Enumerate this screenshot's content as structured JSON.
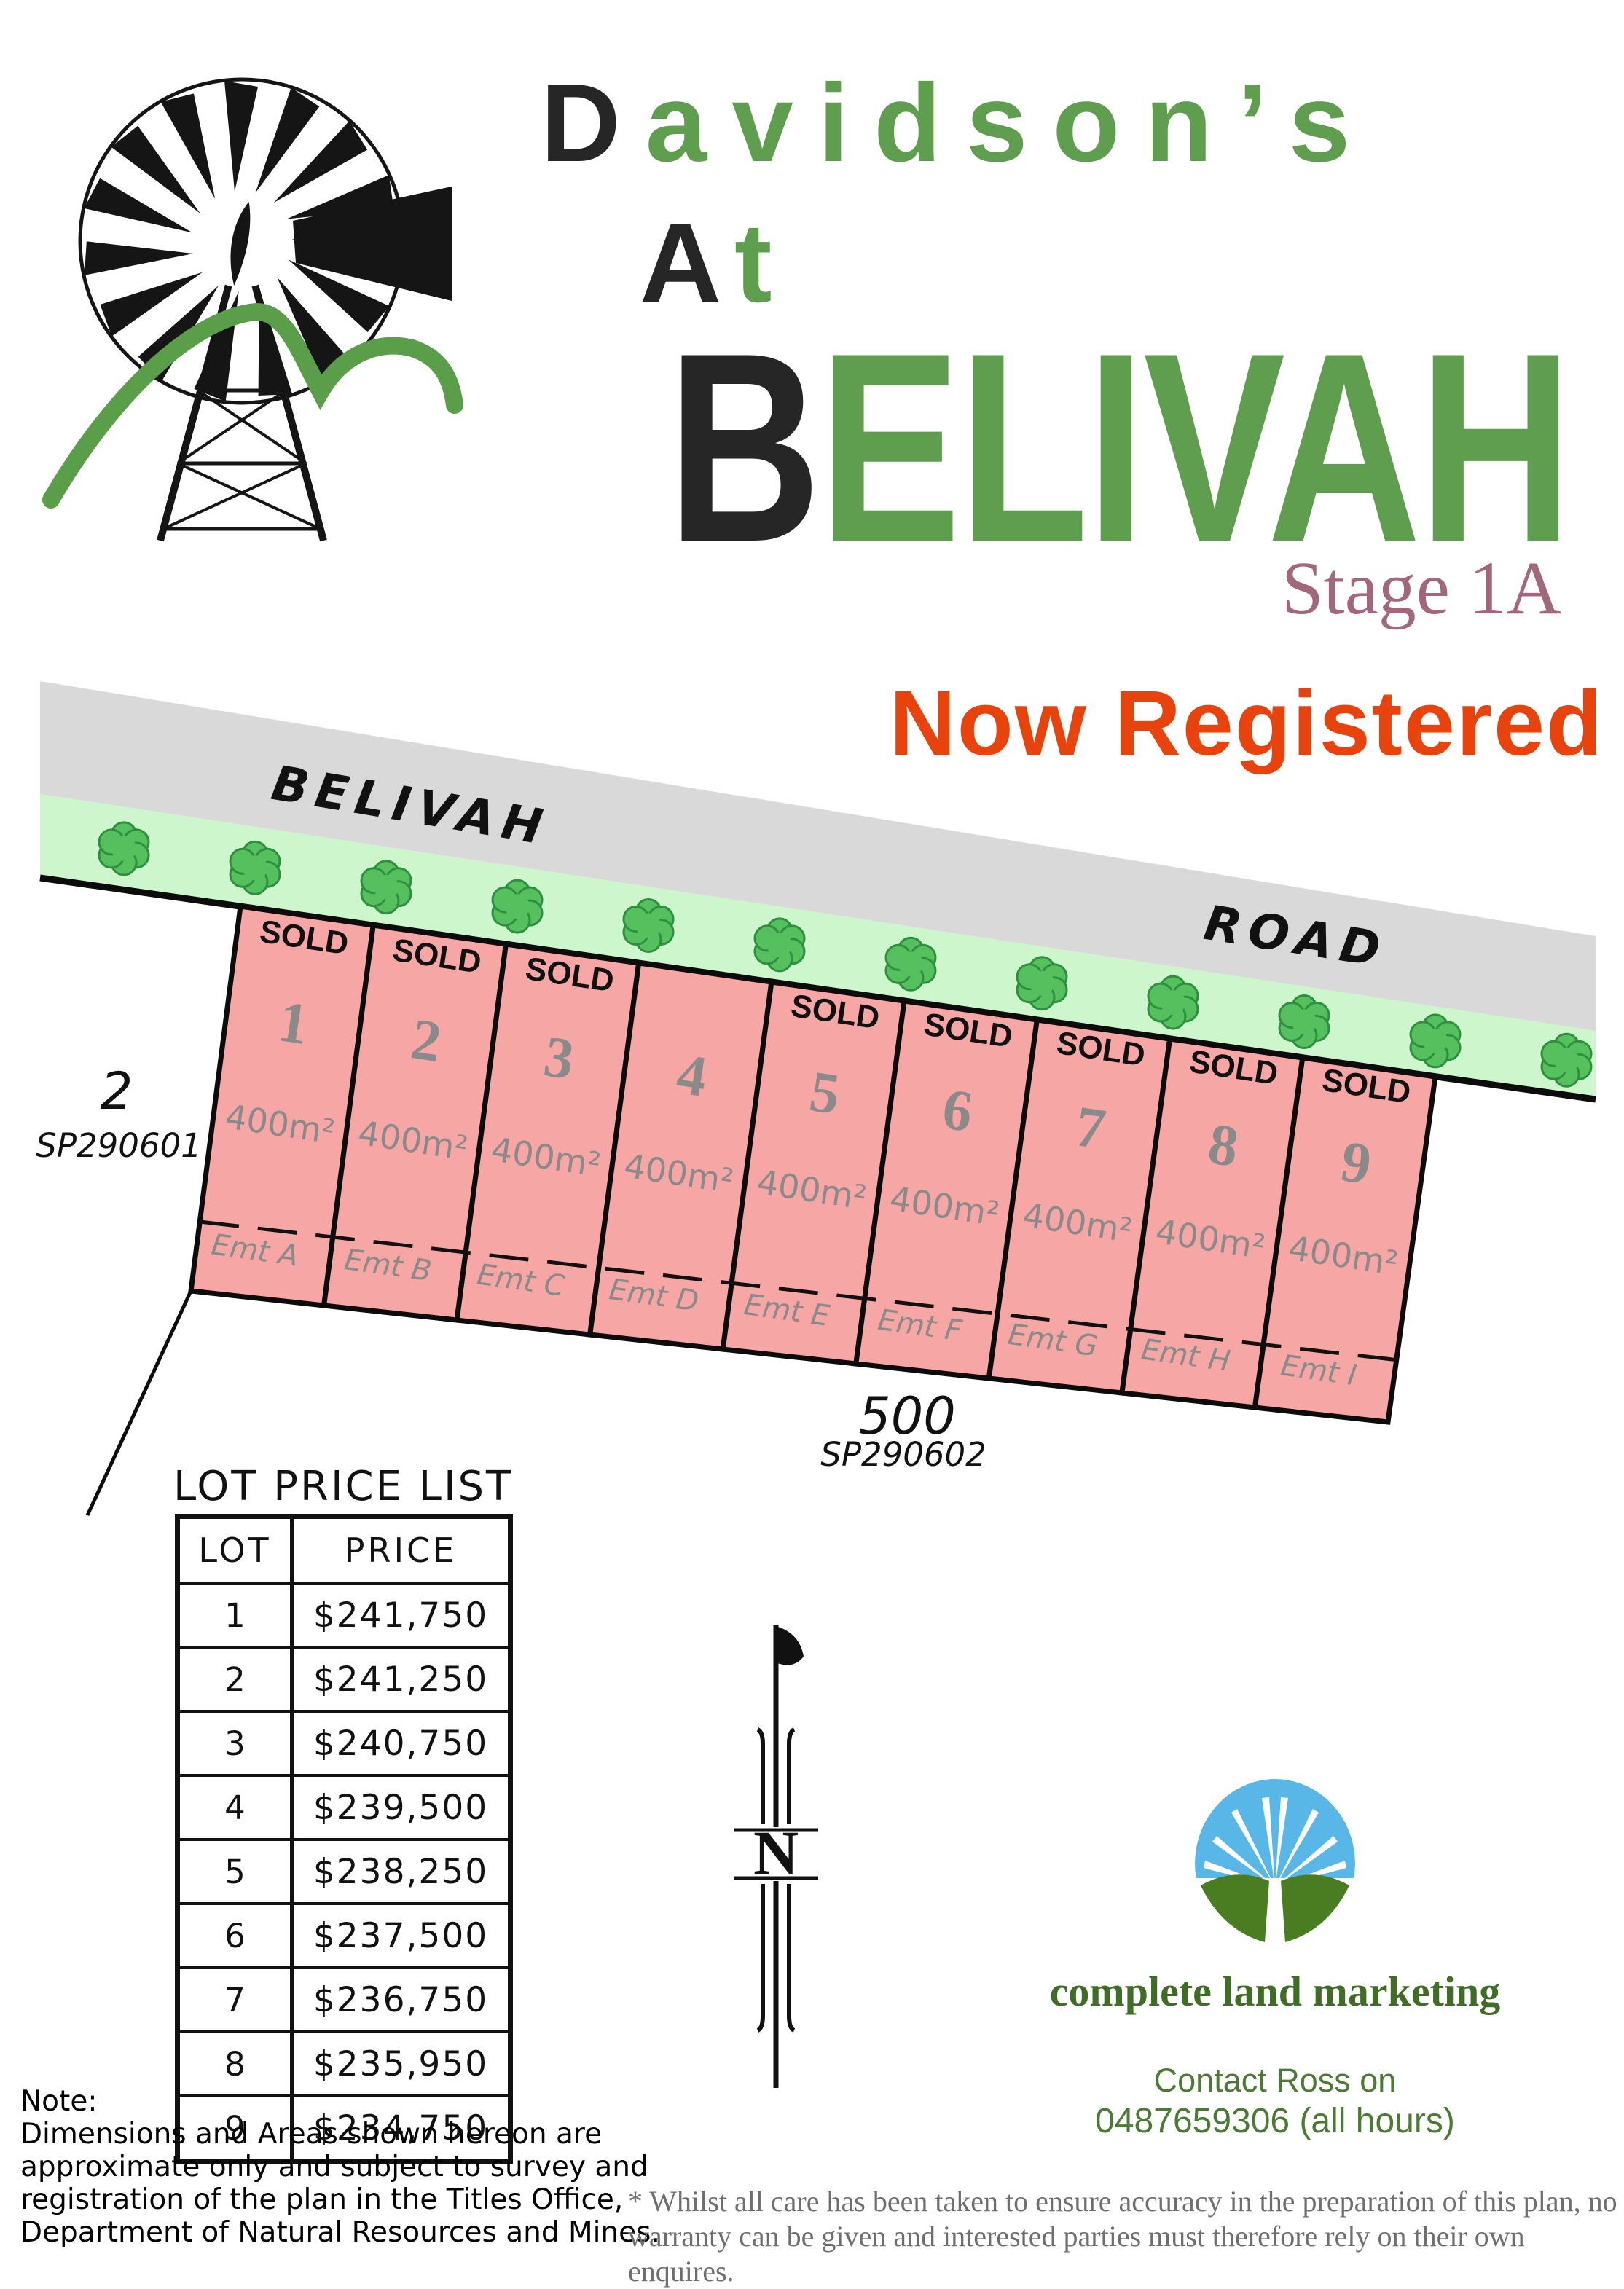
{
  "brand": {
    "line1_first": "D",
    "line1_rest": "avidson’s",
    "line2_first": "A",
    "line2_rest": "t",
    "title_first": "B",
    "title_rest": "ELIVAH",
    "stage": "Stage 1A",
    "banner": "Now Registered"
  },
  "plan": {
    "road_label_left": "BELIVAH",
    "road_label_right": "ROAD",
    "adjacent_parcel": {
      "number": "2",
      "plan_ref": "SP290601"
    },
    "balance_parcel": {
      "number": "500",
      "plan_ref": "SP290602"
    },
    "lots": [
      {
        "number": "1",
        "status": "SOLD",
        "area": "400m²",
        "easement": "Emt A"
      },
      {
        "number": "2",
        "status": "SOLD",
        "area": "400m²",
        "easement": "Emt B"
      },
      {
        "number": "3",
        "status": "SOLD",
        "area": "400m²",
        "easement": "Emt C"
      },
      {
        "number": "4",
        "status": "",
        "area": "400m²",
        "easement": "Emt D"
      },
      {
        "number": "5",
        "status": "SOLD",
        "area": "400m²",
        "easement": "Emt E"
      },
      {
        "number": "6",
        "status": "SOLD",
        "area": "400m²",
        "easement": "Emt F"
      },
      {
        "number": "7",
        "status": "SOLD",
        "area": "400m²",
        "easement": "Emt G"
      },
      {
        "number": "8",
        "status": "SOLD",
        "area": "400m²",
        "easement": "Emt H"
      },
      {
        "number": "9",
        "status": "SOLD",
        "area": "400m²",
        "easement": "Emt I"
      }
    ]
  },
  "price_list": {
    "title": "LOT PRICE LIST",
    "columns": {
      "lot": "LOT",
      "price": "PRICE"
    },
    "rows": [
      {
        "lot": "1",
        "price": "$241,750"
      },
      {
        "lot": "2",
        "price": "$241,250"
      },
      {
        "lot": "3",
        "price": "$240,750"
      },
      {
        "lot": "4",
        "price": "$239,500"
      },
      {
        "lot": "5",
        "price": "$238,250"
      },
      {
        "lot": "6",
        "price": "$237,500"
      },
      {
        "lot": "7",
        "price": "$236,750"
      },
      {
        "lot": "8",
        "price": "$235,950"
      },
      {
        "lot": "9",
        "price": "$234,750"
      }
    ]
  },
  "compass": {
    "label": "N"
  },
  "agency": {
    "name": "complete land marketing",
    "contact_line1": "Contact Ross on",
    "contact_line2": "0487659306 (all hours)"
  },
  "notes": {
    "note_title": "Note:",
    "note_lines": [
      "Dimensions and Areas shown hereon are",
      "approximate only and subject to survey and",
      "registration of the plan in the Titles Office,",
      "Department of Natural Resources and Mines."
    ],
    "disclaimer_lines": [
      "* Whilst  all care has been taken to ensure accuracy in the preparation of this plan, no",
      "warranty can be given and interested parties must therefore rely on their own enquires."
    ]
  },
  "colors": {
    "brand_green": "#5f9e4e",
    "stage_maroon": "#a2677a",
    "banner_orange": "#e8430d",
    "road_gray": "#d9d9d9",
    "verge_green": "#cdf6cc",
    "lot_pink": "#f7a6a6",
    "tree_green": "#56c05f",
    "agency_green": "#3f6d26",
    "logo_blue": "#59b7e8",
    "logo_hill_green": "#4a7d21"
  }
}
